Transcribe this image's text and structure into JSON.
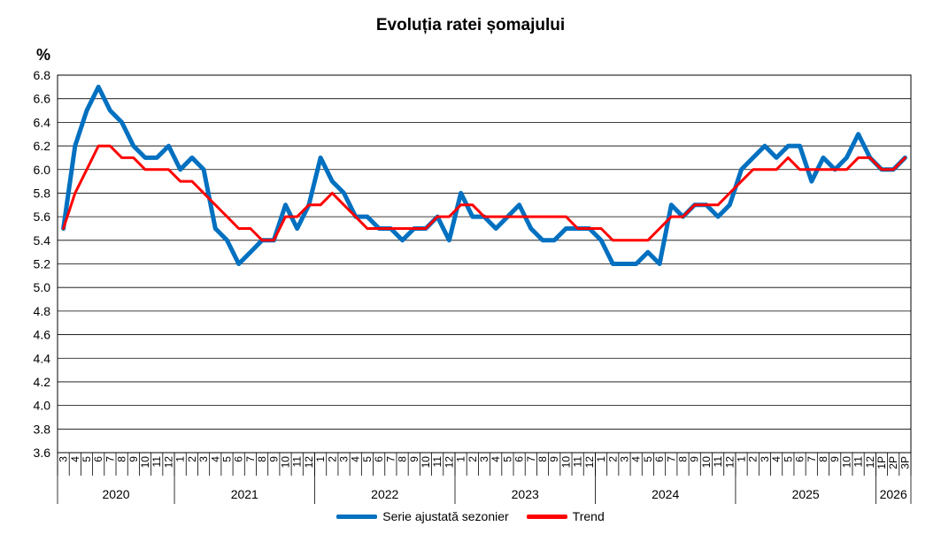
{
  "chart_data": {
    "type": "line",
    "title": "Evoluția ratei șomajului",
    "ylabel": "%",
    "ylim": [
      3.6,
      6.8
    ],
    "yticks": [
      "3.6",
      "3.8",
      "4.0",
      "4.2",
      "4.4",
      "4.6",
      "4.8",
      "5.0",
      "5.2",
      "5.4",
      "5.6",
      "5.8",
      "6.0",
      "6.2",
      "6.4",
      "6.6",
      "6.8"
    ],
    "grid": true,
    "legend_position": "bottom",
    "month_labels": [
      "3",
      "4",
      "5",
      "6",
      "7",
      "8",
      "9",
      "10",
      "11",
      "12",
      "1",
      "2",
      "3",
      "4",
      "5",
      "6",
      "7",
      "8",
      "9",
      "10",
      "11",
      "12",
      "1",
      "2",
      "3",
      "4",
      "5",
      "6",
      "7",
      "8",
      "9",
      "10",
      "11",
      "12",
      "1",
      "2",
      "3",
      "4",
      "5",
      "6",
      "7",
      "8",
      "9",
      "10",
      "11",
      "12",
      "1",
      "2",
      "3",
      "4",
      "5",
      "6",
      "7",
      "8",
      "9",
      "10",
      "11",
      "12",
      "1",
      "2",
      "3",
      "4",
      "5",
      "6",
      "7",
      "8",
      "9",
      "10",
      "11",
      "12",
      "1P",
      "2P",
      "3P"
    ],
    "years": [
      {
        "label": "2020",
        "count": 10
      },
      {
        "label": "2021",
        "count": 12
      },
      {
        "label": "2022",
        "count": 12
      },
      {
        "label": "2023",
        "count": 12
      },
      {
        "label": "2024",
        "count": 12
      },
      {
        "label": "2025",
        "count": 12
      },
      {
        "label": "2026",
        "count": 3
      }
    ],
    "series": [
      {
        "name": "Serie ajustată sezonier",
        "color": "#0070C0",
        "values": [
          5.5,
          6.2,
          6.5,
          6.7,
          6.5,
          6.4,
          6.2,
          6.1,
          6.1,
          6.2,
          6.0,
          6.1,
          6.0,
          5.5,
          5.4,
          5.2,
          5.3,
          5.4,
          5.4,
          5.7,
          5.5,
          5.7,
          6.1,
          5.9,
          5.8,
          5.6,
          5.6,
          5.5,
          5.5,
          5.4,
          5.5,
          5.5,
          5.6,
          5.4,
          5.8,
          5.6,
          5.6,
          5.5,
          5.6,
          5.7,
          5.5,
          5.4,
          5.4,
          5.5,
          5.5,
          5.5,
          5.4,
          5.2,
          5.2,
          5.2,
          5.3,
          5.2,
          5.7,
          5.6,
          5.7,
          5.7,
          5.6,
          5.7,
          6.0,
          6.1,
          6.2,
          6.1,
          6.2,
          6.2,
          5.9,
          6.1,
          6.0,
          6.1,
          6.3,
          6.1,
          6.0,
          6.0,
          6.1
        ]
      },
      {
        "name": "Trend",
        "color": "#FF0000",
        "values": [
          5.5,
          5.8,
          6.0,
          6.2,
          6.2,
          6.1,
          6.1,
          6.0,
          6.0,
          6.0,
          5.9,
          5.9,
          5.8,
          5.7,
          5.6,
          5.5,
          5.5,
          5.4,
          5.4,
          5.6,
          5.6,
          5.7,
          5.7,
          5.8,
          5.7,
          5.6,
          5.5,
          5.5,
          5.5,
          5.5,
          5.5,
          5.5,
          5.6,
          5.6,
          5.7,
          5.7,
          5.6,
          5.6,
          5.6,
          5.6,
          5.6,
          5.6,
          5.6,
          5.6,
          5.5,
          5.5,
          5.5,
          5.4,
          5.4,
          5.4,
          5.4,
          5.5,
          5.6,
          5.6,
          5.7,
          5.7,
          5.7,
          5.8,
          5.9,
          6.0,
          6.0,
          6.0,
          6.1,
          6.0,
          6.0,
          6.0,
          6.0,
          6.0,
          6.1,
          6.1,
          6.0,
          6.0,
          6.1
        ]
      }
    ]
  }
}
